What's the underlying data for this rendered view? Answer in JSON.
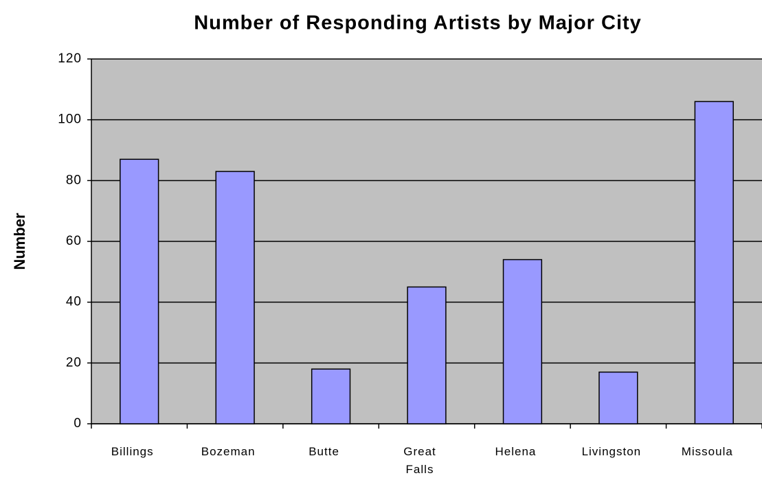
{
  "chart_data": {
    "type": "bar",
    "title": "Number of Responding Artists by Major City",
    "y_label": "Number",
    "categories": [
      "Billings",
      "Bozeman",
      "Butte",
      "Great Falls",
      "Helena",
      "Livingston",
      "Missoula"
    ],
    "values": [
      87,
      83,
      18,
      45,
      54,
      17,
      106
    ],
    "color": "#9999ff",
    "ylim": [
      0,
      120
    ],
    "yticks": [
      0,
      20,
      40,
      60,
      80,
      100,
      120
    ],
    "grid": true
  }
}
